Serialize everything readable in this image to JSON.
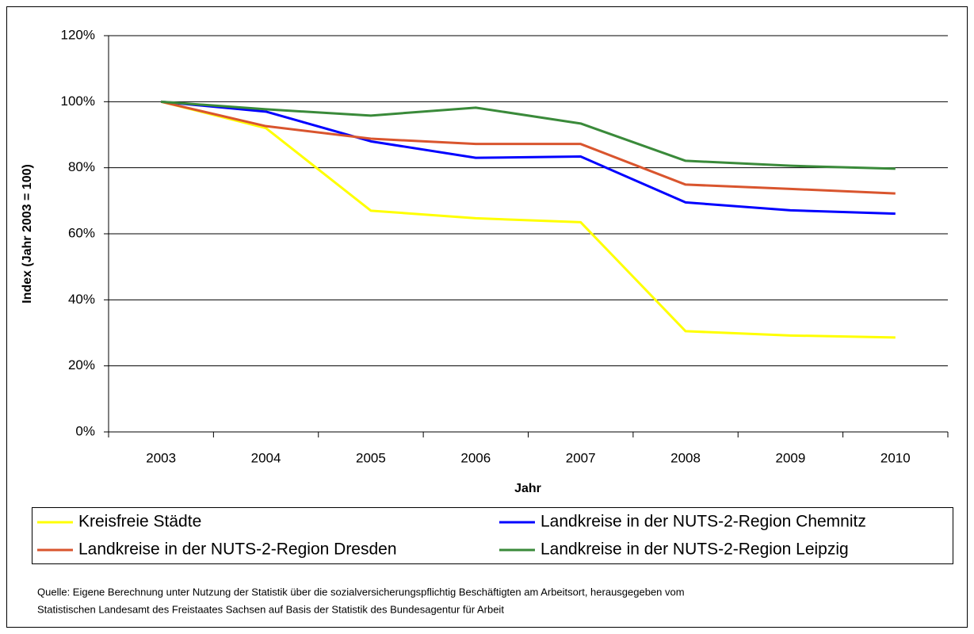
{
  "chart_data": {
    "type": "line",
    "y_label": "Index (Jahr 2003 = 100)",
    "x_label": "Jahr",
    "categories": [
      "2003",
      "2004",
      "2005",
      "2006",
      "2007",
      "2008",
      "2009",
      "2010"
    ],
    "series": [
      {
        "name": "Kreisfreie Städte",
        "color": "#ffff00",
        "values": [
          100,
          92,
          67,
          64.7,
          63.5,
          30.5,
          29.2,
          28.6
        ]
      },
      {
        "name": "Landkreise in der NUTS-2-Region Chemnitz",
        "color": "#0000ff",
        "values": [
          100,
          97,
          88,
          83,
          83.4,
          69.5,
          67.1,
          66.1
        ]
      },
      {
        "name": "Landkreise in der NUTS-2-Region Dresden",
        "color": "#d9552e",
        "values": [
          100,
          92.6,
          88.8,
          87.2,
          87.2,
          74.9,
          73.6,
          72.2
        ]
      },
      {
        "name": "Landkreise in der NUTS-2-Region Leipzig",
        "color": "#3a8a3a",
        "values": [
          100,
          97.7,
          95.8,
          98.2,
          93.4,
          82.1,
          80.6,
          79.7
        ]
      }
    ],
    "ylim": [
      0,
      120
    ],
    "yticks": [
      {
        "value": 0,
        "label": "0%"
      },
      {
        "value": 20,
        "label": "20%"
      },
      {
        "value": 40,
        "label": "40%"
      },
      {
        "value": 60,
        "label": "60%"
      },
      {
        "value": 80,
        "label": "80%"
      },
      {
        "value": 100,
        "label": "100%"
      },
      {
        "value": 120,
        "label": "120%"
      }
    ],
    "grid": true,
    "source": [
      "Quelle: Eigene Berechnung unter Nutzung der Statistik über die sozialversicherungspflichtig Beschäftigten am Arbeitsort, herausgegeben vom",
      "Statistischen Landesamt des Freistaates Sachsen auf Basis der Statistik des Bundesagentur für Arbeit"
    ]
  }
}
